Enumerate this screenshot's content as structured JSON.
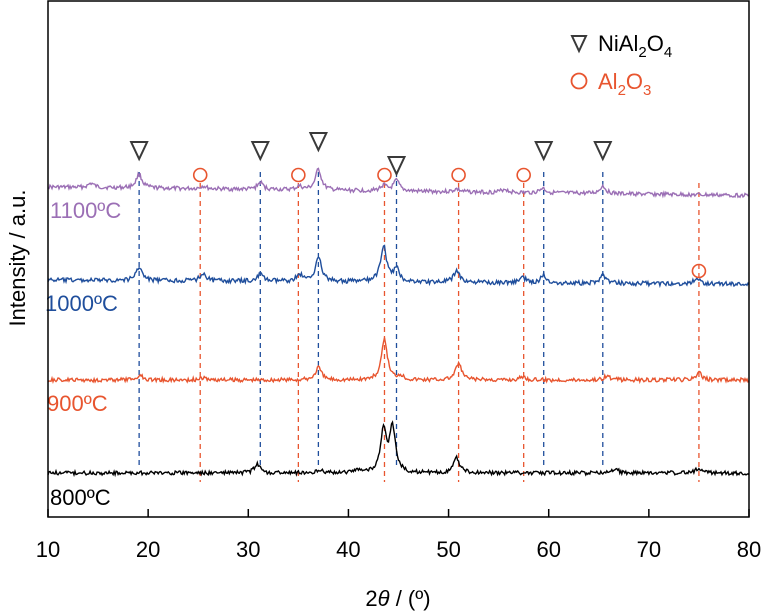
{
  "chart_data": {
    "type": "line",
    "xlabel": "2θ / (º)",
    "ylabel": "Intensity / a.u.",
    "xlim": [
      10,
      80
    ],
    "xticks": [
      "10",
      "20",
      "30",
      "40",
      "50",
      "60",
      "70",
      "80"
    ],
    "grid": false,
    "legend_position": "top-right",
    "legend": [
      {
        "marker": "triangle-down",
        "label": "NiAl2O4",
        "color": "#3a3a3a"
      },
      {
        "marker": "circle",
        "label": "Al2O3",
        "color": "#e8552f"
      }
    ],
    "series": [
      {
        "name": "1100ºC",
        "color": "#9b6fb5",
        "peaks": [
          [
            14.3,
            0.3
          ],
          [
            19.1,
            1.0
          ],
          [
            25.5,
            0.2
          ],
          [
            31.2,
            0.5
          ],
          [
            35.1,
            0.25
          ],
          [
            37.0,
            1.5
          ],
          [
            43.5,
            0.4
          ],
          [
            44.8,
            0.75
          ],
          [
            50.8,
            0.2
          ],
          [
            55.6,
            0.25
          ],
          [
            59.4,
            0.35
          ],
          [
            65.4,
            0.55
          ]
        ]
      },
      {
        "name": "1000ºC",
        "color": "#1f4e9c",
        "peaks": [
          [
            19.1,
            1.0
          ],
          [
            25.5,
            0.55
          ],
          [
            31.2,
            0.5
          ],
          [
            35.1,
            0.5
          ],
          [
            37.0,
            1.8
          ],
          [
            43.5,
            2.6
          ],
          [
            44.8,
            0.9
          ],
          [
            50.8,
            0.85
          ],
          [
            57.4,
            0.4
          ],
          [
            59.5,
            0.55
          ],
          [
            65.4,
            0.6
          ],
          [
            74.8,
            0.4
          ]
        ]
      },
      {
        "name": "900ºC",
        "color": "#e8552f",
        "peaks": [
          [
            19.2,
            0.35
          ],
          [
            25.5,
            0.15
          ],
          [
            37.0,
            0.9
          ],
          [
            43.6,
            2.9
          ],
          [
            45.2,
            0.3
          ],
          [
            51.0,
            1.2
          ],
          [
            57.4,
            0.25
          ],
          [
            65.8,
            0.3
          ],
          [
            75.0,
            0.5
          ]
        ]
      },
      {
        "name": "800ºC",
        "color": "#000000",
        "peaks": [
          [
            30.9,
            0.6
          ],
          [
            37.2,
            0.25
          ],
          [
            41.0,
            0.25
          ],
          [
            43.5,
            2.9
          ],
          [
            44.4,
            3.2
          ],
          [
            50.8,
            1.1
          ],
          [
            66.7,
            0.25
          ],
          [
            75.0,
            0.35
          ]
        ]
      }
    ],
    "reference_lines": {
      "NiAl2O4": [
        19.1,
        31.2,
        37.0,
        44.8,
        59.5,
        65.4
      ],
      "Al2O3": [
        25.2,
        35.0,
        43.6,
        51.0,
        57.5,
        75.0
      ]
    },
    "markers": {
      "NiAl2O4": [
        19.1,
        31.2,
        37.0,
        44.8,
        59.5,
        65.4
      ],
      "Al2O3": [
        25.2,
        35.0,
        43.6,
        51.0,
        57.5,
        75.0
      ]
    }
  }
}
